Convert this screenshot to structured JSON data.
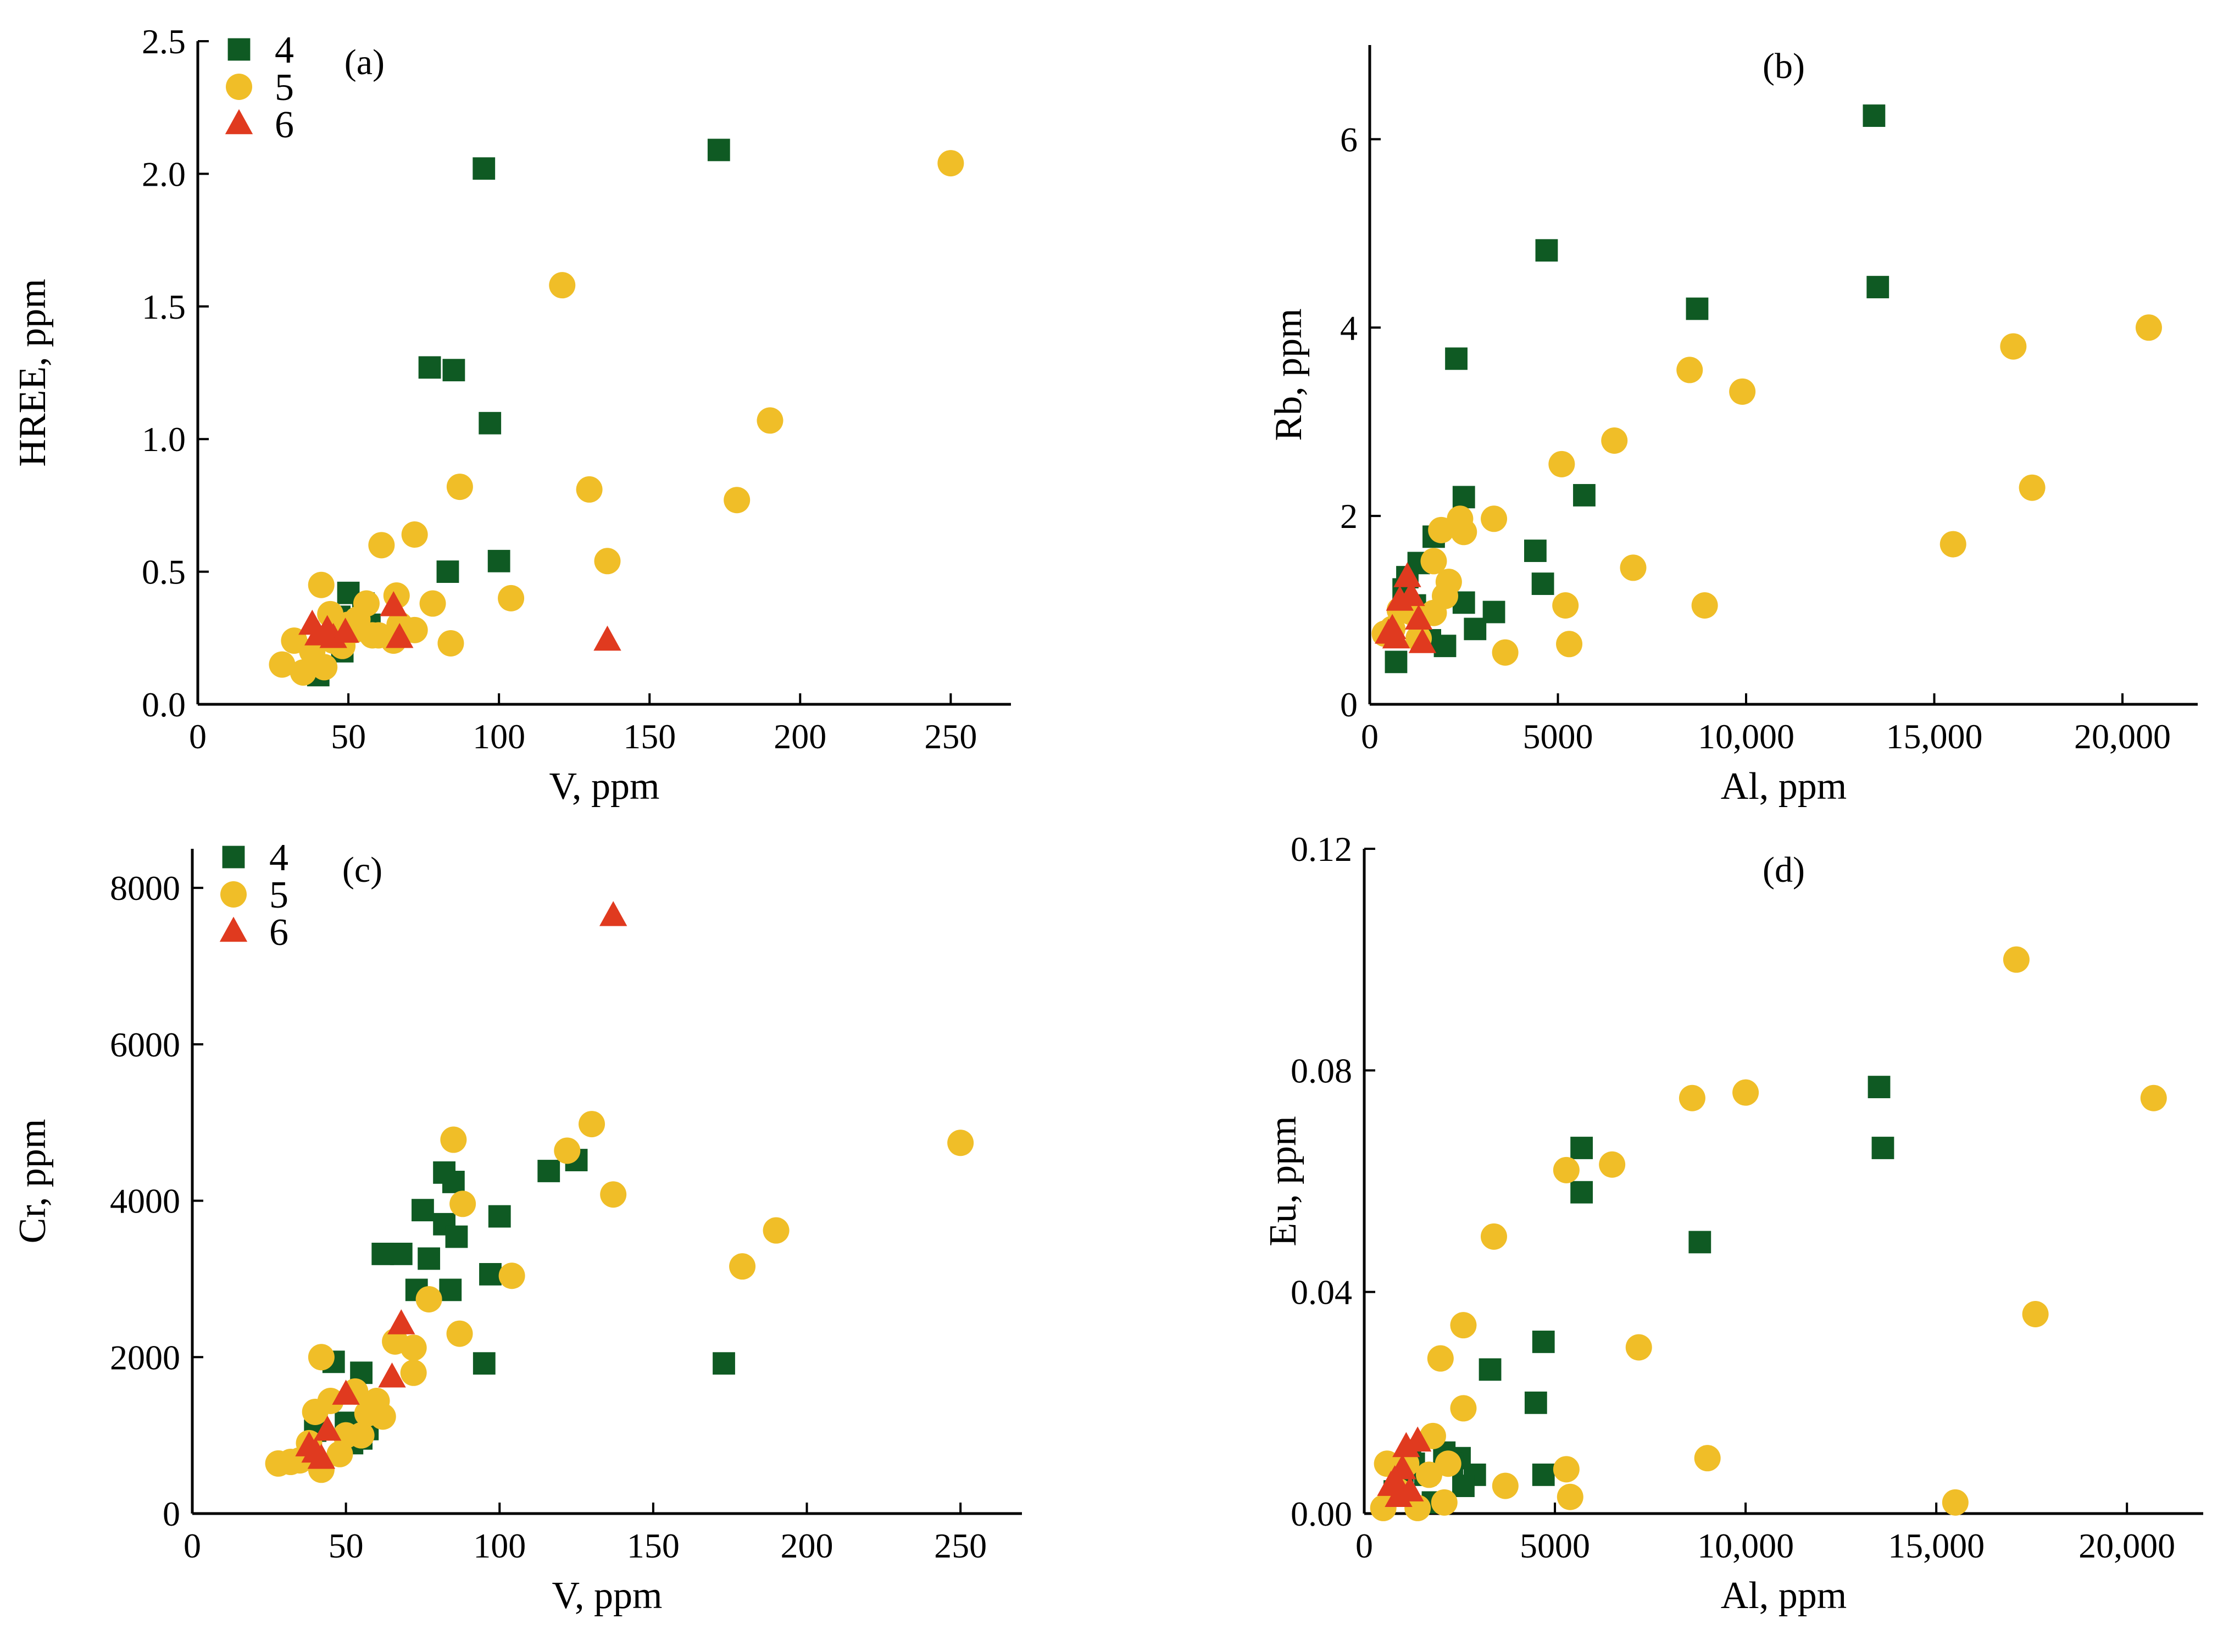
{
  "colors": {
    "series4": "#0f5a23",
    "series5": "#f0be28",
    "series6": "#e03a1f",
    "axis": "#000000"
  },
  "chart_data": [
    {
      "type": "scatter",
      "panel_label": "(a)",
      "xlabel": "V, ppm",
      "ylabel": "HREE, ppm",
      "xlim": [
        0,
        270
      ],
      "ylim": [
        0,
        2.5
      ],
      "xticks": [
        0,
        50,
        100,
        150,
        200,
        250
      ],
      "xtick_labels": [
        "0",
        "50",
        "100",
        "150",
        "200",
        "250"
      ],
      "yticks": [
        0,
        0.5,
        1.0,
        1.5,
        2.0,
        2.5
      ],
      "ytick_labels": [
        "0.0",
        "0.5",
        "1.0",
        "1.5",
        "2.0",
        "2.5"
      ],
      "legend": true,
      "legend_position": "top-left",
      "series": [
        {
          "name": "4",
          "marker": "square",
          "color": "#0f5a23",
          "x": [
            95,
            173,
            77,
            85,
            97,
            83,
            100,
            50,
            55,
            47,
            48,
            52,
            40,
            45,
            57
          ],
          "y": [
            2.02,
            2.09,
            1.27,
            1.26,
            1.06,
            0.5,
            0.54,
            0.42,
            0.38,
            0.33,
            0.2,
            0.32,
            0.11,
            0.25,
            0.3
          ]
        },
        {
          "name": "5",
          "marker": "circle",
          "color": "#f0be28",
          "x": [
            250,
            121,
            190,
            179,
            130,
            136,
            87,
            72,
            61,
            66,
            78,
            104,
            84,
            41,
            44,
            50,
            53,
            56,
            58,
            67,
            72,
            28,
            32,
            35,
            38,
            42,
            45,
            48,
            52,
            60,
            65
          ],
          "y": [
            2.04,
            1.58,
            1.07,
            0.77,
            0.81,
            0.54,
            0.82,
            0.64,
            0.6,
            0.41,
            0.38,
            0.4,
            0.23,
            0.45,
            0.34,
            0.3,
            0.32,
            0.38,
            0.26,
            0.3,
            0.28,
            0.15,
            0.24,
            0.12,
            0.2,
            0.14,
            0.24,
            0.22,
            0.28,
            0.26,
            0.24
          ]
        },
        {
          "name": "6",
          "marker": "triangle",
          "color": "#e03a1f",
          "x": [
            38,
            40,
            43,
            45,
            49,
            65,
            67,
            136
          ],
          "y": [
            0.3,
            0.26,
            0.28,
            0.25,
            0.27,
            0.37,
            0.25,
            0.24
          ]
        }
      ]
    },
    {
      "type": "scatter",
      "panel_label": "(b)",
      "xlabel": "Al, ppm",
      "ylabel": "Rb, ppm",
      "xlim": [
        0,
        22000
      ],
      "ylim": [
        0,
        7
      ],
      "xticks": [
        0,
        5000,
        10000,
        15000,
        20000
      ],
      "xtick_labels": [
        "0",
        "5000",
        "10,000",
        "15,000",
        "20,000"
      ],
      "yticks": [
        0,
        2,
        4,
        6
      ],
      "ytick_labels": [
        "0",
        "2",
        "4",
        "6"
      ],
      "legend": false,
      "series": [
        {
          "name": "4",
          "marker": "square",
          "color": "#0f5a23",
          "x": [
            13400,
            4700,
            13500,
            8700,
            2300,
            5700,
            2500,
            1700,
            1300,
            1000,
            4400,
            4600,
            2500,
            3300,
            2000,
            2800,
            1600,
            900,
            700,
            1200
          ],
          "y": [
            6.25,
            4.82,
            4.43,
            4.2,
            3.67,
            2.22,
            2.2,
            1.78,
            1.5,
            1.35,
            1.63,
            1.28,
            1.08,
            0.98,
            0.62,
            0.8,
            0.68,
            1.22,
            0.45,
            1.05
          ]
        },
        {
          "name": "5",
          "marker": "circle",
          "color": "#f0be28",
          "x": [
            20700,
            17100,
            8500,
            9900,
            17600,
            15500,
            6500,
            5100,
            7000,
            8900,
            3300,
            2400,
            2500,
            1900,
            1700,
            2100,
            1700,
            3600,
            5200,
            5300,
            1100,
            800,
            600,
            400,
            1300,
            2000
          ],
          "y": [
            4.0,
            3.8,
            3.55,
            3.32,
            2.3,
            1.7,
            2.8,
            2.55,
            1.45,
            1.05,
            1.97,
            1.97,
            1.83,
            1.85,
            1.52,
            1.3,
            0.97,
            0.55,
            1.05,
            0.64,
            0.98,
            1.0,
            0.8,
            0.75,
            0.7,
            1.15
          ]
        },
        {
          "name": "6",
          "marker": "triangle",
          "color": "#e03a1f",
          "x": [
            1000,
            800,
            1100,
            1300,
            500,
            700,
            1400,
            600
          ],
          "y": [
            1.35,
            1.1,
            1.15,
            0.9,
            0.75,
            0.7,
            0.65,
            0.8
          ]
        }
      ]
    },
    {
      "type": "scatter",
      "panel_label": "(c)",
      "xlabel": "V, ppm",
      "ylabel": "Cr, ppm",
      "xlim": [
        0,
        270
      ],
      "ylim": [
        0,
        8500
      ],
      "xticks": [
        0,
        50,
        100,
        150,
        200,
        250
      ],
      "xtick_labels": [
        "0",
        "50",
        "100",
        "150",
        "200",
        "250"
      ],
      "yticks": [
        0,
        2000,
        4000,
        6000,
        8000
      ],
      "ytick_labels": [
        "0",
        "2000",
        "4000",
        "6000",
        "8000"
      ],
      "legend": true,
      "legend_position": "top-left",
      "series": [
        {
          "name": "4",
          "marker": "square",
          "color": "#0f5a23",
          "x": [
            116,
            125,
            82,
            85,
            100,
            75,
            62,
            68,
            77,
            82,
            86,
            73,
            84,
            97,
            95,
            173,
            46,
            55,
            50,
            57,
            52,
            55,
            40
          ],
          "y": [
            4380,
            4520,
            4360,
            4240,
            3800,
            3880,
            3320,
            3320,
            3260,
            3700,
            3540,
            2860,
            2860,
            3060,
            1920,
            1920,
            1940,
            1800,
            1160,
            1080,
            900,
            960,
            1060
          ]
        },
        {
          "name": "5",
          "marker": "circle",
          "color": "#f0be28",
          "x": [
            250,
            130,
            122,
            137,
            85,
            88,
            190,
            179,
            104,
            77,
            87,
            66,
            72,
            60,
            42,
            45,
            53,
            57,
            62,
            40,
            50,
            42,
            48,
            35,
            28,
            32,
            38,
            55,
            72
          ],
          "y": [
            4740,
            4980,
            4640,
            4080,
            4780,
            3960,
            3620,
            3160,
            3040,
            2740,
            2300,
            2200,
            2120,
            1440,
            2000,
            1440,
            1560,
            1280,
            1240,
            1300,
            1000,
            560,
            760,
            680,
            640,
            660,
            900,
            1000,
            1800
          ]
        },
        {
          "name": "6",
          "marker": "triangle",
          "color": "#e03a1f",
          "x": [
            137,
            68,
            65,
            50,
            44,
            40,
            42,
            38
          ],
          "y": [
            7640,
            2420,
            1740,
            1520,
            1060,
            780,
            700,
            860
          ]
        }
      ]
    },
    {
      "type": "scatter",
      "panel_label": "(d)",
      "xlabel": "Al, ppm",
      "ylabel": "Eu, ppm",
      "xlim": [
        0,
        22000
      ],
      "ylim": [
        0,
        0.12
      ],
      "xticks": [
        0,
        5000,
        10000,
        15000,
        20000
      ],
      "xtick_labels": [
        "0",
        "5000",
        "10,000",
        "15,000",
        "20,000"
      ],
      "yticks": [
        0,
        0.04,
        0.08,
        0.12
      ],
      "ytick_labels": [
        "0.00",
        "0.04",
        "0.08",
        "0.12"
      ],
      "legend": false,
      "series": [
        {
          "name": "4",
          "marker": "square",
          "color": "#0f5a23",
          "x": [
            13500,
            5700,
            13600,
            5700,
            8800,
            4700,
            3300,
            4500,
            2100,
            2500,
            2900,
            1300,
            2600,
            1600,
            1000,
            4700,
            800,
            1800,
            1200,
            2300
          ],
          "y": [
            0.077,
            0.066,
            0.066,
            0.058,
            0.049,
            0.031,
            0.026,
            0.02,
            0.011,
            0.01,
            0.007,
            0.009,
            0.005,
            0.007,
            0.006,
            0.007,
            0.004,
            0.002,
            0.01,
            0.009
          ]
        },
        {
          "name": "5",
          "marker": "circle",
          "color": "#f0be28",
          "x": [
            17100,
            20700,
            10000,
            8600,
            6500,
            5300,
            3400,
            7200,
            17600,
            2600,
            2000,
            2600,
            1800,
            9000,
            2200,
            1700,
            600,
            3700,
            5300,
            5400,
            900,
            1400,
            2100,
            500,
            15500,
            1100
          ],
          "y": [
            0.1,
            0.075,
            0.076,
            0.075,
            0.063,
            0.062,
            0.05,
            0.03,
            0.036,
            0.034,
            0.028,
            0.019,
            0.014,
            0.01,
            0.009,
            0.007,
            0.009,
            0.005,
            0.008,
            0.003,
            0.004,
            0.001,
            0.002,
            0.001,
            0.002,
            0.009
          ]
        },
        {
          "name": "6",
          "marker": "triangle",
          "color": "#e03a1f",
          "x": [
            1400,
            1100,
            1000,
            800,
            700,
            1200,
            900
          ],
          "y": [
            0.013,
            0.012,
            0.008,
            0.006,
            0.005,
            0.004,
            0.003
          ]
        }
      ]
    }
  ]
}
